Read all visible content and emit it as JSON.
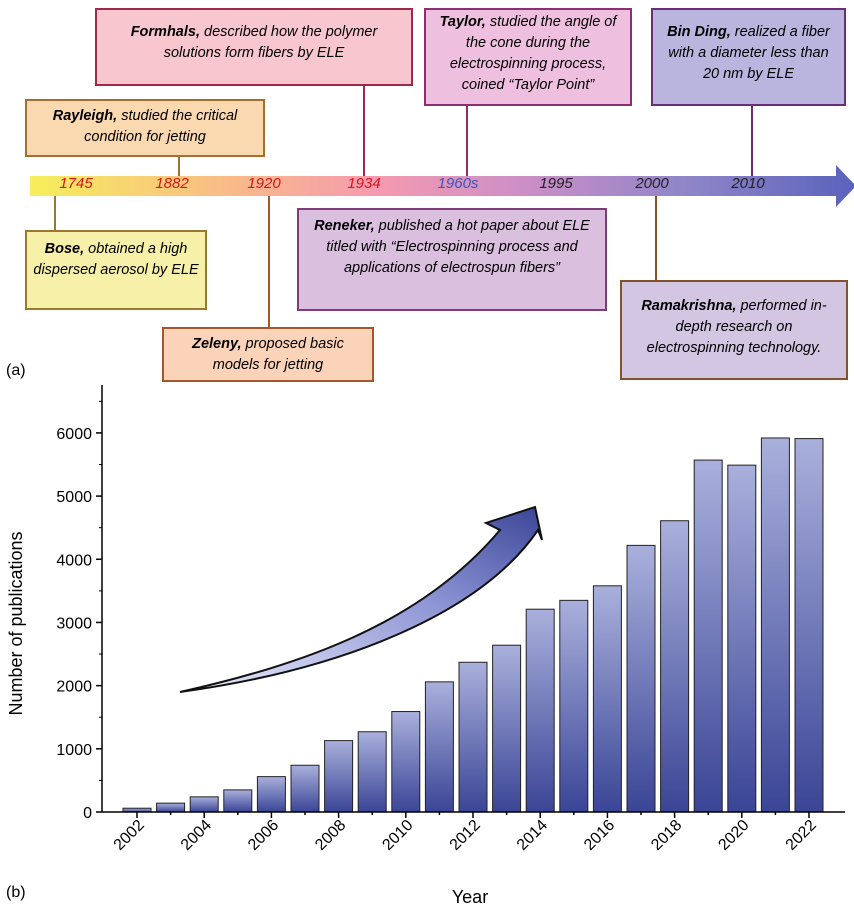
{
  "panel_a": {
    "label": "(a)",
    "years": [
      {
        "text": "1745",
        "color": "#d8141c"
      },
      {
        "text": "1882",
        "color": "#d8141c"
      },
      {
        "text": "1920",
        "color": "#d8141c"
      },
      {
        "text": "1934",
        "color": "#d8141c"
      },
      {
        "text": "1960s",
        "color": "#3b56b8"
      },
      {
        "text": "1995",
        "color": "#222222"
      },
      {
        "text": "2000",
        "color": "#222222"
      },
      {
        "text": "2010",
        "color": "#222222"
      }
    ],
    "events": [
      {
        "name": "Bose,",
        "text": " obtained a high dispersed aerosol by ELE",
        "fill": "#f7f0a8",
        "border": "#9a7a2c"
      },
      {
        "name": "Rayleigh,",
        "text": " studied the critical condition for jetting",
        "fill": "#fbd9b0",
        "border": "#a46f2e"
      },
      {
        "name": "Zeleny,",
        "text": " proposed basic models for jetting",
        "fill": "#fad3b8",
        "border": "#a6562c"
      },
      {
        "name": "Formhals,",
        "text": " described how the polymer solutions form fibers by ELE",
        "fill": "#f8c6cf",
        "border": "#9c2b48"
      },
      {
        "name": "Taylor,",
        "text": " studied the angle of the cone during the electrospinning process, coined “Taylor Point”",
        "fill": "#efbfdf",
        "border": "#8d2f6e"
      },
      {
        "name": "Reneker,",
        "text": " published a hot paper about ELE titled with “Electrospinning process and applications of electrospun fibers”",
        "fill": "#dbbfdf",
        "border": "#7f3c7a"
      },
      {
        "name": "Ramakrishna,",
        "text": " performed in-depth research on electrospinning technology.",
        "fill": "#d2c6e2",
        "border": "#83532c"
      },
      {
        "name": "Bin Ding,",
        "text": " realized a fiber with a diameter less than 20 nm by ELE",
        "fill": "#b9b5de",
        "border": "#6a2e74"
      }
    ]
  },
  "panel_b": {
    "label": "(b)",
    "chart_data": {
      "type": "bar",
      "categories": [
        "2002",
        "2003",
        "2004",
        "2005",
        "2006",
        "2007",
        "2008",
        "2009",
        "2010",
        "2011",
        "2012",
        "2013",
        "2014",
        "2015",
        "2016",
        "2017",
        "2018",
        "2019",
        "2020",
        "2021",
        "2022"
      ],
      "values": [
        60,
        140,
        240,
        350,
        560,
        740,
        1130,
        1270,
        1590,
        2060,
        2370,
        2640,
        3210,
        3350,
        3580,
        4220,
        4610,
        5570,
        5490,
        5920,
        5910
      ],
      "tick_labels_x": [
        "2002",
        "2004",
        "2006",
        "2008",
        "2010",
        "2012",
        "2014",
        "2016",
        "2018",
        "2020",
        "2022"
      ],
      "tick_labels_y": [
        "0",
        "1000",
        "2000",
        "3000",
        "4000",
        "5000",
        "6000"
      ],
      "xlabel": "Year",
      "ylabel": "Number of publications",
      "ylim": [
        0,
        6600
      ],
      "bar_color_top": "#aab0dc",
      "bar_color_bottom": "#3a4596",
      "grid": false
    }
  }
}
